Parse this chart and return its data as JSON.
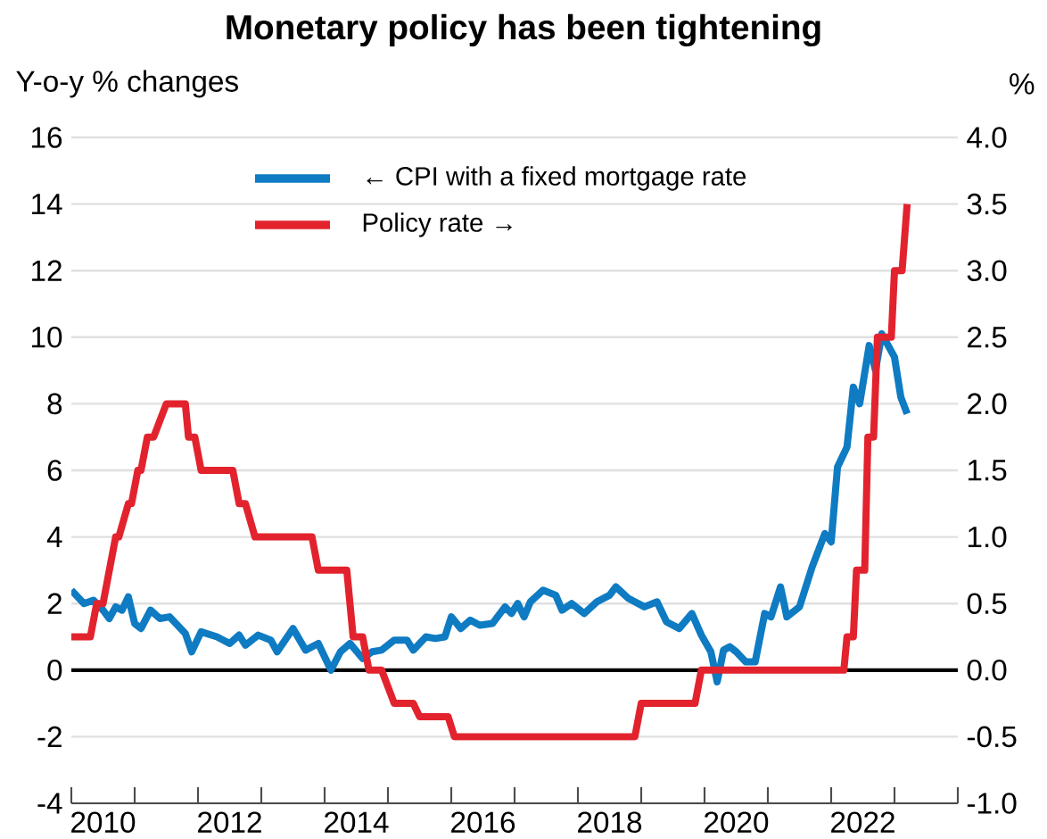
{
  "chart_data": {
    "type": "line",
    "title": "Monetary policy has been tightening",
    "ylabel": "Y-o-y % changes",
    "y2label": "%",
    "xlim": [
      2010,
      2024
    ],
    "xticks": [
      {
        "value": 2010,
        "label": null
      },
      {
        "value": 2011,
        "label": null
      },
      {
        "value": 2012,
        "label": null
      },
      {
        "value": 2013,
        "label": null
      },
      {
        "value": 2014,
        "label": null
      },
      {
        "value": 2015,
        "label": null
      },
      {
        "value": 2016,
        "label": null
      },
      {
        "value": 2017,
        "label": null
      },
      {
        "value": 2018,
        "label": null
      },
      {
        "value": 2019,
        "label": null
      },
      {
        "value": 2020,
        "label": null
      },
      {
        "value": 2021,
        "label": null
      },
      {
        "value": 2022,
        "label": null
      },
      {
        "value": 2023,
        "label": null
      },
      {
        "value": 2024,
        "label": null
      },
      {
        "value": 2010.5,
        "label": "2010"
      },
      {
        "value": 2012.5,
        "label": "2012"
      },
      {
        "value": 2014.5,
        "label": "2014"
      },
      {
        "value": 2016.5,
        "label": "2016"
      },
      {
        "value": 2018.5,
        "label": "2018"
      },
      {
        "value": 2020.5,
        "label": "2020"
      },
      {
        "value": 2022.5,
        "label": "2022"
      }
    ],
    "ylim": [
      -4,
      16
    ],
    "yticks": [
      -4,
      -2,
      0,
      2,
      4,
      6,
      8,
      10,
      12,
      14,
      16
    ],
    "y2lim": [
      -1,
      4
    ],
    "y2ticks": [
      {
        "value": -1,
        "label": "-1.0"
      },
      {
        "value": -0.5,
        "label": "-0.5"
      },
      {
        "value": 0,
        "label": "0.0"
      },
      {
        "value": 0.5,
        "label": "0.5"
      },
      {
        "value": 1,
        "label": "1.0"
      },
      {
        "value": 1.5,
        "label": "1.5"
      },
      {
        "value": 2,
        "label": "2.0"
      },
      {
        "value": 2.5,
        "label": "2.5"
      },
      {
        "value": 3,
        "label": "3.0"
      },
      {
        "value": 3.5,
        "label": "3.5"
      },
      {
        "value": 4,
        "label": "4.0"
      }
    ],
    "grid": "y",
    "legend": "top",
    "ref_lines": [
      {
        "axis": "y",
        "value": 0,
        "color": "#000000"
      }
    ],
    "series": [
      {
        "name": "← CPI with a fixed mortgage rate",
        "color": "#0e7bc2",
        "x": [
          2010.0,
          2010.2,
          2010.35,
          2010.5,
          2010.6,
          2010.7,
          2010.8,
          2010.9,
          2011.0,
          2011.1,
          2011.25,
          2011.4,
          2011.55,
          2011.65,
          2011.8,
          2011.9,
          2012.05,
          2012.3,
          2012.5,
          2012.65,
          2012.75,
          2012.95,
          2013.15,
          2013.25,
          2013.5,
          2013.7,
          2013.9,
          2014.1,
          2014.25,
          2014.4,
          2014.6,
          2014.75,
          2014.9,
          2015.1,
          2015.3,
          2015.4,
          2015.6,
          2015.75,
          2015.9,
          2016.0,
          2016.15,
          2016.3,
          2016.45,
          2016.65,
          2016.85,
          2016.95,
          2017.05,
          2017.15,
          2017.25,
          2017.45,
          2017.65,
          2017.75,
          2017.9,
          2018.1,
          2018.3,
          2018.5,
          2018.6,
          2018.8,
          2019.05,
          2019.25,
          2019.4,
          2019.6,
          2019.8,
          2019.95,
          2020.1,
          2020.2,
          2020.3,
          2020.4,
          2020.5,
          2020.65,
          2020.8,
          2020.95,
          2021.05,
          2021.2,
          2021.3,
          2021.5,
          2021.7,
          2021.9,
          2022.0,
          2022.1,
          2022.25,
          2022.35,
          2022.45,
          2022.6,
          2022.7,
          2022.8,
          2022.9,
          2023.0,
          2023.1,
          2023.2
        ],
        "values": [
          2.4,
          2.0,
          2.1,
          1.8,
          1.55,
          1.9,
          1.8,
          2.2,
          1.4,
          1.25,
          1.8,
          1.55,
          1.6,
          1.4,
          1.1,
          0.55,
          1.15,
          1.0,
          0.8,
          1.05,
          0.75,
          1.05,
          0.9,
          0.55,
          1.25,
          0.6,
          0.8,
          0.0,
          0.55,
          0.8,
          0.35,
          0.55,
          0.6,
          0.9,
          0.9,
          0.6,
          1.0,
          0.95,
          1.0,
          1.6,
          1.25,
          1.5,
          1.35,
          1.4,
          1.9,
          1.7,
          2.0,
          1.6,
          2.05,
          2.4,
          2.25,
          1.8,
          2.0,
          1.7,
          2.05,
          2.25,
          2.5,
          2.15,
          1.9,
          2.05,
          1.45,
          1.25,
          1.7,
          1.05,
          0.55,
          -0.35,
          0.6,
          0.7,
          0.55,
          0.25,
          0.25,
          1.7,
          1.6,
          2.5,
          1.6,
          1.9,
          3.1,
          4.1,
          3.85,
          6.1,
          6.7,
          8.5,
          8.0,
          9.75,
          9.0,
          10.1,
          9.75,
          9.4,
          8.2,
          7.7
        ]
      },
      {
        "name": "Policy rate →",
        "color": "#e2232e",
        "axis": "y2",
        "x": [
          2010.0,
          2010.3,
          2010.4,
          2010.5,
          2010.7,
          2010.75,
          2010.9,
          2010.95,
          2011.05,
          2011.1,
          2011.2,
          2011.3,
          2011.5,
          2011.8,
          2011.85,
          2011.95,
          2012.05,
          2012.55,
          2012.65,
          2012.75,
          2012.9,
          2013.8,
          2013.9,
          2014.35,
          2014.45,
          2014.6,
          2014.7,
          2014.9,
          2015.1,
          2015.4,
          2015.5,
          2015.95,
          2016.05,
          2018.9,
          2019.0,
          2019.85,
          2019.95,
          2022.2,
          2022.25,
          2022.35,
          2022.4,
          2022.53,
          2022.58,
          2022.67,
          2022.73,
          2022.95,
          2023.0,
          2023.12,
          2023.2
        ],
        "values": [
          0.25,
          0.25,
          0.5,
          0.5,
          1.0,
          1.0,
          1.25,
          1.25,
          1.5,
          1.5,
          1.75,
          1.75,
          2.0,
          2.0,
          1.75,
          1.75,
          1.5,
          1.5,
          1.25,
          1.25,
          1.0,
          1.0,
          0.75,
          0.75,
          0.25,
          0.25,
          0,
          0,
          -0.25,
          -0.25,
          -0.35,
          -0.35,
          -0.5,
          -0.5,
          -0.25,
          -0.25,
          0,
          0,
          0.25,
          0.25,
          0.75,
          0.75,
          1.75,
          1.75,
          2.5,
          2.5,
          3.0,
          3.0,
          3.5
        ]
      }
    ]
  }
}
